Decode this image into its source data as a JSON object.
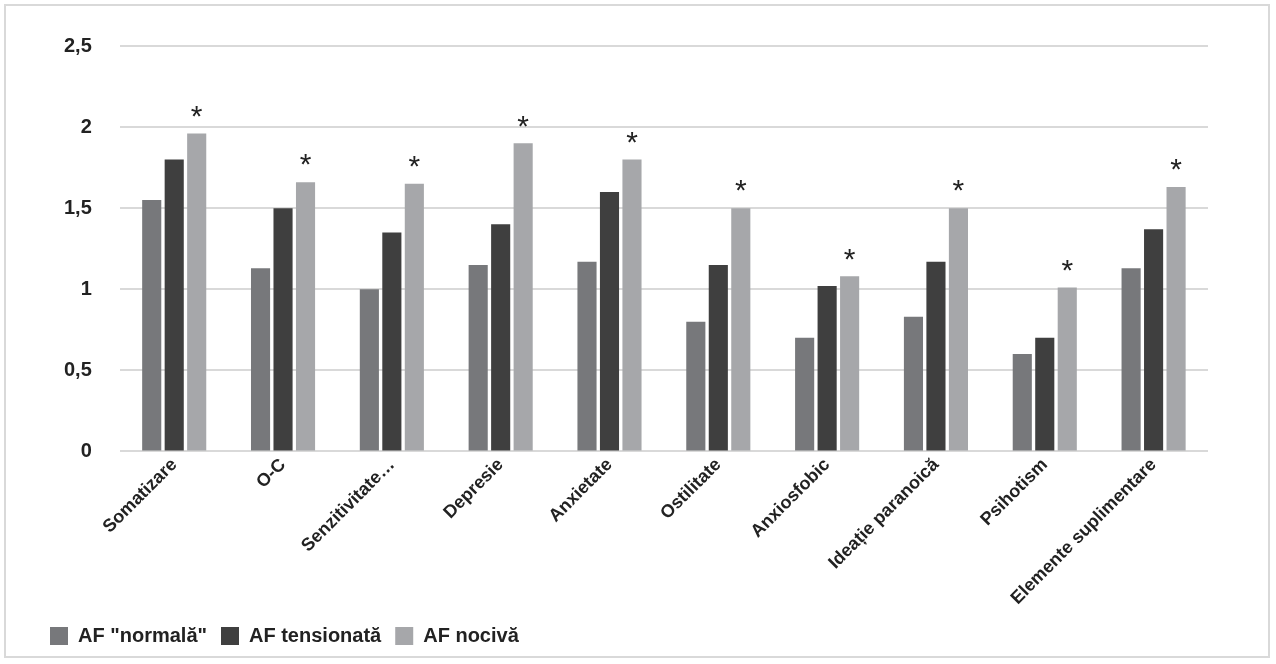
{
  "chart_data": {
    "type": "bar",
    "categories": [
      "Somatizare",
      "O-C",
      "Senzitivitate…",
      "Depresie",
      "Anxietate",
      "Ostilitate",
      "Anxiosfobic",
      "Ideație paranoică",
      "Psihotism",
      "Elemente suplimentare"
    ],
    "series": [
      {
        "name": "AF \"normală\"",
        "color": "#77787b",
        "values": [
          1.55,
          1.13,
          1.0,
          1.15,
          1.17,
          0.8,
          0.7,
          0.83,
          0.6,
          1.13
        ]
      },
      {
        "name": "AF tensionată",
        "color": "#3f3f3f",
        "values": [
          1.8,
          1.5,
          1.35,
          1.4,
          1.6,
          1.15,
          1.02,
          1.17,
          0.7,
          1.37
        ]
      },
      {
        "name": "AF nocivă",
        "color": "#a6a7aa",
        "values": [
          1.96,
          1.66,
          1.65,
          1.9,
          1.8,
          1.5,
          1.08,
          1.5,
          1.01,
          1.63
        ]
      }
    ],
    "ylim": [
      0,
      2.5
    ],
    "yticks": [
      0,
      {
        "value": 0.5,
        "label": "0,5"
      },
      1,
      {
        "value": 1.5,
        "label": "1,5"
      },
      2,
      {
        "value": 2.5,
        "label": "2,5"
      }
    ],
    "grid": "y",
    "legend": "bottom",
    "annotations": [
      "*",
      "*",
      "*",
      "*",
      "*",
      "*",
      "*",
      "*",
      "*",
      "*"
    ]
  }
}
